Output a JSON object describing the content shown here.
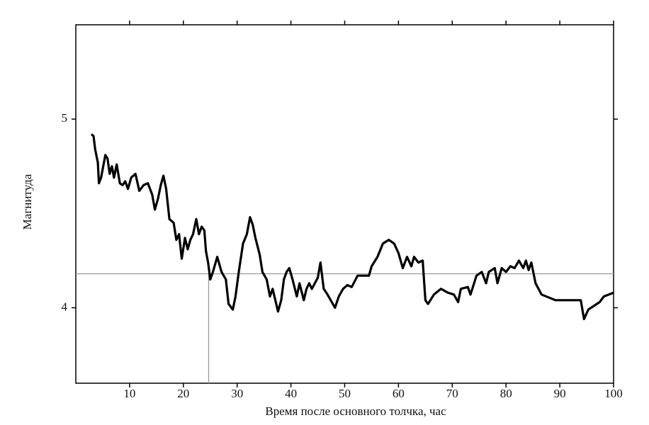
{
  "chart_data": {
    "type": "line",
    "xlabel": "Время после основного толчка, час",
    "ylabel": "Магнитуда",
    "xlim": [
      0,
      100
    ],
    "ylim": [
      3.6,
      5.5
    ],
    "xticks": [
      10,
      20,
      30,
      40,
      50,
      60,
      70,
      80,
      90,
      100
    ],
    "yticks": [
      4,
      5
    ],
    "hline": 4.18,
    "vline": 24.7,
    "refcolor": "#999999",
    "x": [
      2.9,
      3.3,
      3.6,
      4.1,
      4.3,
      4.7,
      5.1,
      5.5,
      5.9,
      6.3,
      6.7,
      7.1,
      7.6,
      8.2,
      8.7,
      9.2,
      9.7,
      10.3,
      11.1,
      11.8,
      12.6,
      13.4,
      14.2,
      14.7,
      15.3,
      15.8,
      16.3,
      16.8,
      17.4,
      18.2,
      18.7,
      19.2,
      19.7,
      20.3,
      20.8,
      21.3,
      21.8,
      22.4,
      22.9,
      23.4,
      23.9,
      24.2,
      24.6,
      25.0,
      25.5,
      26.1,
      26.3,
      27.1,
      27.9,
      28.4,
      29.2,
      29.7,
      30.3,
      31.1,
      31.8,
      32.4,
      32.9,
      33.4,
      34.2,
      34.7,
      35.5,
      36.1,
      36.6,
      37.1,
      37.6,
      38.2,
      38.7,
      39.2,
      39.7,
      40.3,
      41.1,
      41.6,
      42.4,
      42.9,
      43.4,
      43.9,
      45.0,
      45.5,
      46.1,
      46.8,
      47.6,
      48.2,
      48.9,
      49.7,
      50.5,
      51.3,
      52.4,
      54.5,
      55.0,
      56.1,
      57.1,
      58.2,
      59.2,
      60.0,
      60.8,
      61.6,
      62.4,
      62.9,
      63.7,
      64.5,
      65.0,
      65.5,
      66.6,
      67.9,
      69.2,
      70.3,
      71.1,
      71.6,
      72.9,
      73.4,
      74.5,
      75.5,
      76.3,
      76.8,
      77.9,
      78.4,
      79.2,
      80.0,
      80.8,
      81.6,
      82.4,
      83.2,
      83.7,
      84.2,
      84.7,
      85.5,
      86.6,
      89.2,
      93.9,
      94.5,
      95.3,
      97.4,
      98.2,
      100
    ],
    "series": [
      {
        "color": "#000000",
        "values": [
          4.92,
          4.91,
          4.84,
          4.77,
          4.66,
          4.69,
          4.75,
          4.81,
          4.79,
          4.71,
          4.75,
          4.69,
          4.76,
          4.66,
          4.65,
          4.67,
          4.63,
          4.69,
          4.71,
          4.62,
          4.65,
          4.66,
          4.6,
          4.52,
          4.58,
          4.65,
          4.7,
          4.63,
          4.47,
          4.45,
          4.36,
          4.39,
          4.26,
          4.37,
          4.31,
          4.36,
          4.39,
          4.47,
          4.39,
          4.43,
          4.41,
          4.3,
          4.24,
          4.15,
          4.19,
          4.25,
          4.27,
          4.19,
          4.15,
          4.02,
          3.99,
          4.06,
          4.19,
          4.34,
          4.39,
          4.48,
          4.44,
          4.37,
          4.28,
          4.19,
          4.15,
          4.06,
          4.1,
          4.04,
          3.98,
          4.04,
          4.15,
          4.19,
          4.21,
          4.15,
          4.06,
          4.13,
          4.04,
          4.1,
          4.13,
          4.1,
          4.16,
          4.24,
          4.1,
          4.07,
          4.03,
          4.0,
          4.06,
          4.1,
          4.12,
          4.11,
          4.17,
          4.17,
          4.22,
          4.27,
          4.34,
          4.36,
          4.34,
          4.29,
          4.21,
          4.27,
          4.22,
          4.27,
          4.24,
          4.25,
          4.04,
          4.02,
          4.07,
          4.1,
          4.08,
          4.07,
          4.03,
          4.1,
          4.11,
          4.07,
          4.17,
          4.19,
          4.13,
          4.19,
          4.21,
          4.13,
          4.21,
          4.19,
          4.22,
          4.21,
          4.25,
          4.21,
          4.25,
          4.2,
          4.24,
          4.13,
          4.07,
          4.04,
          4.04,
          3.94,
          3.99,
          4.03,
          4.06,
          4.08
        ]
      }
    ]
  }
}
